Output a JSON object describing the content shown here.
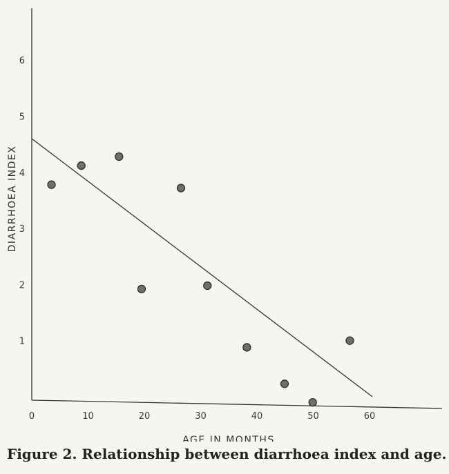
{
  "chart_data": {
    "type": "scatter",
    "title": "",
    "xlabel": "AGE IN MONTHS",
    "ylabel": "DIARRHOEA INDEX",
    "xlim": [
      0,
      72
    ],
    "ylim": [
      -0.1,
      7
    ],
    "x_ticks": [
      0,
      10,
      20,
      30,
      40,
      50,
      60
    ],
    "y_ticks": [
      1,
      2,
      3,
      4,
      5,
      6
    ],
    "grid": false,
    "legend": "none",
    "points": [
      {
        "x": 3.5,
        "y": 3.78
      },
      {
        "x": 8.8,
        "y": 4.12
      },
      {
        "x": 15.5,
        "y": 4.28
      },
      {
        "x": 19.5,
        "y": 1.92
      },
      {
        "x": 26.5,
        "y": 3.72
      },
      {
        "x": 31.2,
        "y": 1.98
      },
      {
        "x": 38.2,
        "y": 0.88
      },
      {
        "x": 44.9,
        "y": 0.23
      },
      {
        "x": 49.9,
        "y": -0.1
      },
      {
        "x": 56.5,
        "y": 1.0
      }
    ],
    "trend_line": {
      "x": [
        0,
        60.5
      ],
      "y": [
        4.6,
        0
      ]
    }
  },
  "caption": "Figure 2. Relationship between diarrhoea index and age."
}
